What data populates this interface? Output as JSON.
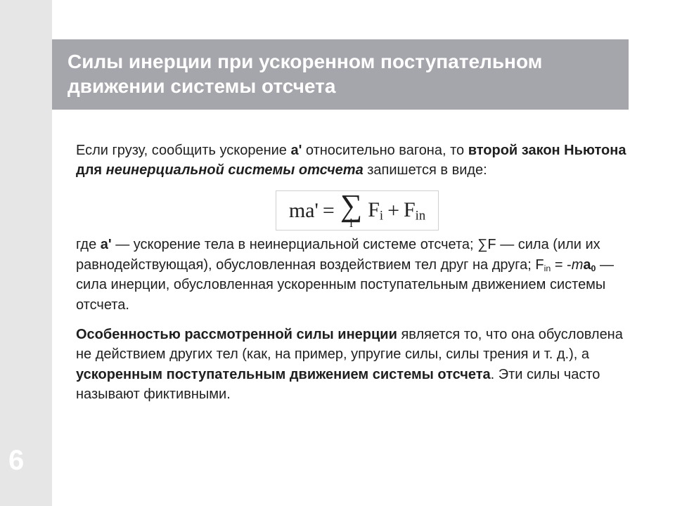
{
  "pageNumber": "6",
  "title": "Силы инерции при ускоренном поступательном движении системы отсчета",
  "para1": {
    "p1": "Если грузу, сообщить ускорение ",
    "a": "а'",
    "p2": " относительно вагона, то ",
    "bold1": "второй закон Ньютона для ",
    "ital": "неинерциальной системы отсчета",
    "p3": " запишется в виде:"
  },
  "formula": {
    "lhs": "ma'",
    "eq": " = ",
    "sum": "∑",
    "idx": "i",
    "t1": "F",
    "t1s": "i",
    "plus": " + ",
    "t2": "F",
    "t2s": "in"
  },
  "para2": {
    "p1": "где ",
    "a": "а'",
    "p2": " — ускорение тела в неинерциальной системе отсчета; ∑F — сила (или их равнодействующая), обусловленная воздействием тел друг на друга; ",
    "f": "F",
    "fs": "in",
    "p3": " = -",
    "m": "m",
    "a0": "a",
    "a0s": "0",
    "p4": " — сила инерции, обусловленная ускоренным поступательным движением системы отсчета."
  },
  "para3": {
    "b1": "Особенностью рассмотренной силы инерции",
    "p1": " является то, что она обусловлена не действием других тел (как, на пример, упругие силы, силы трения и т. д.), а ",
    "b2": "ускоренным поступательным движением системы отсчета",
    "p2": ". Эти силы часто называют фиктивными."
  },
  "colors": {
    "stripe": "#e6e6e6",
    "titleBg": "#a5a5ac",
    "titleText": "#ffffff",
    "bodyText": "#1f1f1f"
  }
}
